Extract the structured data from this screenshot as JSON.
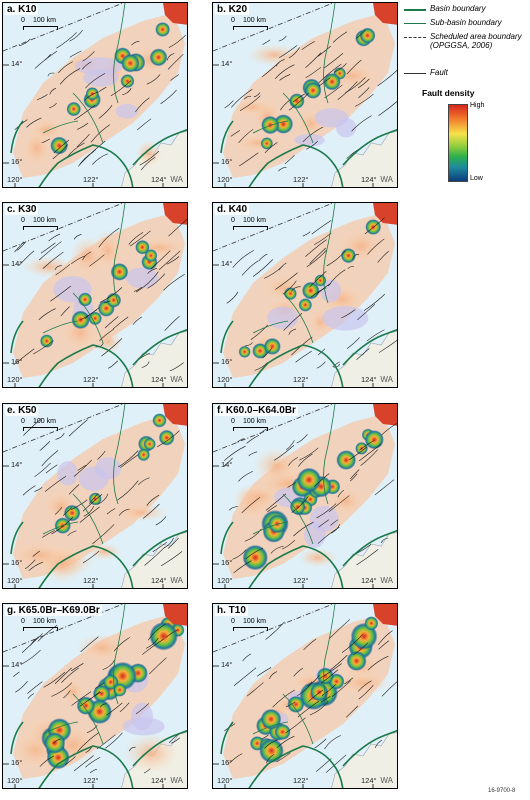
{
  "legend": {
    "basin_boundary": "Basin boundary",
    "sub_basin_boundary": "Sub-basin boundary",
    "scheduled_area": "Scheduled area boundary (OPGGSA, 2006)",
    "fault": "Fault",
    "density_title": "Fault density",
    "high": "High",
    "low": "Low"
  },
  "scale": {
    "zero": "0",
    "km": "100 km"
  },
  "labels": {
    "lat14": "14°",
    "lat16": "16°",
    "lon120": "120°",
    "lon122": "122°",
    "lon124": "124°",
    "wa": "WA"
  },
  "panels": [
    {
      "title": "a. K10",
      "intensity": 0.35
    },
    {
      "title": "b. K20",
      "intensity": 0.4
    },
    {
      "title": "c. K30",
      "intensity": 0.35
    },
    {
      "title": "d. K40",
      "intensity": 0.3
    },
    {
      "title": "e. K50",
      "intensity": 0.25
    },
    {
      "title": "f. K60.0–K64.0Br",
      "intensity": 0.8
    },
    {
      "title": "g. K65.0Br–K69.0Br",
      "intensity": 0.9
    },
    {
      "title": "h. T10",
      "intensity": 0.9
    }
  ],
  "figure_number": "16-9700-8",
  "colors": {
    "sea": "#dff0f8",
    "land": "#f0f0ea",
    "basin": "#1b7a4a",
    "fault": "#1a1a1a"
  }
}
